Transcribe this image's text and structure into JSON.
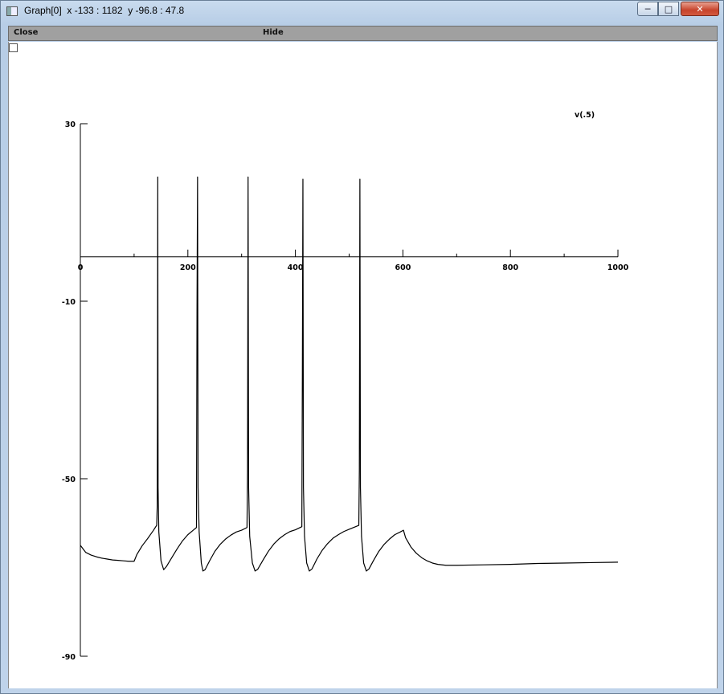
{
  "window": {
    "title": "Graph[0]  x -133 : 1182  y -96.8 : 47.8",
    "minimize_label": "─",
    "maximize_label": "□",
    "close_label": "✕"
  },
  "menu": {
    "close_label": "Close",
    "hide_label": "Hide"
  },
  "chart_data": {
    "type": "line",
    "series": [
      {
        "name": "v(.5)",
        "color": "#000000",
        "points": [
          [
            0,
            -65
          ],
          [
            10,
            -66.6
          ],
          [
            20,
            -67.2
          ],
          [
            30,
            -67.6
          ],
          [
            40,
            -67.9
          ],
          [
            50,
            -68.1
          ],
          [
            60,
            -68.3
          ],
          [
            70,
            -68.4
          ],
          [
            80,
            -68.5
          ],
          [
            90,
            -68.6
          ],
          [
            100,
            -68.6
          ],
          [
            105,
            -67.1
          ],
          [
            115,
            -65.1
          ],
          [
            125,
            -63.5
          ],
          [
            135,
            -61.8
          ],
          [
            142,
            -60.5
          ],
          [
            143,
            -56
          ],
          [
            143.5,
            -33
          ],
          [
            144,
            18
          ],
          [
            144.6,
            -52
          ],
          [
            146,
            -62
          ],
          [
            150,
            -68.5
          ],
          [
            155,
            -70.5
          ],
          [
            160,
            -69.8
          ],
          [
            170,
            -67.8
          ],
          [
            180,
            -65.8
          ],
          [
            190,
            -64
          ],
          [
            200,
            -62.6
          ],
          [
            210,
            -61.6
          ],
          [
            216,
            -61
          ],
          [
            217,
            -12
          ],
          [
            218,
            18
          ],
          [
            219,
            -52
          ],
          [
            221,
            -62
          ],
          [
            225,
            -69
          ],
          [
            228,
            -70.8
          ],
          [
            232,
            -70.5
          ],
          [
            240,
            -68.6
          ],
          [
            250,
            -66.4
          ],
          [
            260,
            -64.8
          ],
          [
            270,
            -63.6
          ],
          [
            280,
            -62.7
          ],
          [
            290,
            -62
          ],
          [
            300,
            -61.6
          ],
          [
            310,
            -61
          ],
          [
            311,
            -48
          ],
          [
            312,
            18
          ],
          [
            313,
            -52
          ],
          [
            315,
            -63
          ],
          [
            320,
            -69
          ],
          [
            325,
            -70.8
          ],
          [
            330,
            -70.4
          ],
          [
            340,
            -68.3
          ],
          [
            350,
            -66.3
          ],
          [
            360,
            -64.7
          ],
          [
            370,
            -63.5
          ],
          [
            380,
            -62.6
          ],
          [
            390,
            -61.9
          ],
          [
            400,
            -61.5
          ],
          [
            412,
            -60.8
          ],
          [
            413,
            -26
          ],
          [
            414,
            17.5
          ],
          [
            415,
            -52
          ],
          [
            417,
            -63
          ],
          [
            421,
            -69
          ],
          [
            426,
            -70.8
          ],
          [
            431,
            -70.3
          ],
          [
            440,
            -68.1
          ],
          [
            450,
            -66.1
          ],
          [
            460,
            -64.6
          ],
          [
            470,
            -63.4
          ],
          [
            480,
            -62.6
          ],
          [
            490,
            -61.9
          ],
          [
            500,
            -61.4
          ],
          [
            518,
            -60.5
          ],
          [
            519,
            -48
          ],
          [
            520,
            17.5
          ],
          [
            521,
            -52
          ],
          [
            523,
            -63
          ],
          [
            527,
            -69
          ],
          [
            532,
            -70.8
          ],
          [
            537,
            -70.3
          ],
          [
            545,
            -68.5
          ],
          [
            555,
            -66.4
          ],
          [
            565,
            -64.8
          ],
          [
            575,
            -63.6
          ],
          [
            585,
            -62.6
          ],
          [
            595,
            -62
          ],
          [
            601,
            -61.6
          ],
          [
            605,
            -63.3
          ],
          [
            615,
            -65.4
          ],
          [
            625,
            -66.8
          ],
          [
            635,
            -67.8
          ],
          [
            645,
            -68.5
          ],
          [
            655,
            -69
          ],
          [
            665,
            -69.3
          ],
          [
            680,
            -69.5
          ],
          [
            700,
            -69.5
          ],
          [
            750,
            -69.4
          ],
          [
            800,
            -69.3
          ],
          [
            850,
            -69.1
          ],
          [
            900,
            -69
          ],
          [
            950,
            -68.9
          ],
          [
            1000,
            -68.8
          ]
        ]
      }
    ],
    "xlim": [
      0,
      1000
    ],
    "ylim": [
      -90,
      30
    ],
    "x_ticks": [
      0,
      200,
      400,
      600,
      800,
      1000
    ],
    "x_ticks_minor": [
      100,
      300,
      500,
      700,
      900
    ],
    "y_ticks": [
      30,
      -10,
      -50,
      -90
    ],
    "x_tick_labels": [
      "0",
      "200",
      "400",
      "600",
      "800",
      "1000"
    ],
    "y_tick_labels": [
      "30",
      "-10",
      "-50",
      "-90"
    ],
    "legend_position": "top-right"
  }
}
